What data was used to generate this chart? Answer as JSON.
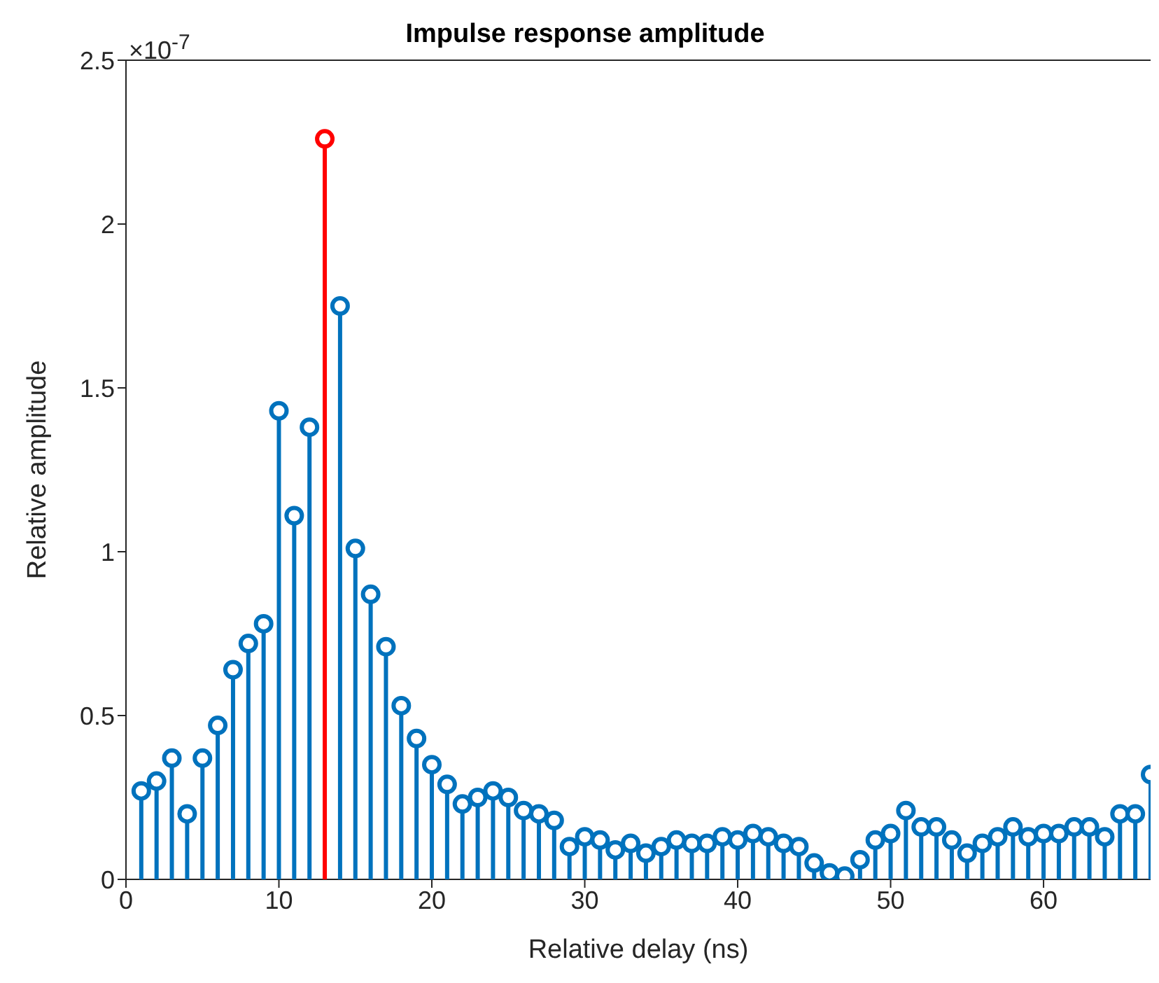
{
  "chart_data": {
    "type": "lollipop",
    "title": "Impulse response amplitude",
    "xlabel": "Relative delay (ns)",
    "ylabel": "Relative amplitude",
    "annotations": [
      "×10$^{-7}$"
    ],
    "xlim": [
      0,
      67
    ],
    "xticks": [
      0,
      10,
      20,
      30,
      40,
      50,
      60
    ],
    "ylim": [
      0,
      2.5
    ],
    "yticks": [
      0,
      0.5,
      1,
      1.5,
      2,
      2.5
    ],
    "marker": "circle",
    "series": [
      {
        "color": "#0072bd",
        "x": [
          1,
          2,
          3,
          4,
          5,
          6,
          7,
          8,
          9,
          10,
          11,
          12,
          14,
          15,
          16,
          17,
          18,
          19,
          20,
          21,
          22,
          23,
          24,
          25,
          26,
          27,
          28,
          29,
          30,
          31,
          32,
          33,
          34,
          35,
          36,
          37,
          38,
          39,
          40,
          41,
          42,
          43,
          44,
          45,
          46,
          47,
          48,
          49,
          50,
          51,
          52,
          53,
          54,
          55,
          56,
          57,
          58,
          59,
          60,
          61,
          62,
          63,
          64,
          65,
          66,
          67
        ],
        "values": [
          0.27,
          0.3,
          0.37,
          0.2,
          0.37,
          0.47,
          0.64,
          0.72,
          0.78,
          1.43,
          1.11,
          1.38,
          1.75,
          1.01,
          0.87,
          0.71,
          0.53,
          0.43,
          0.35,
          0.29,
          0.23,
          0.25,
          0.27,
          0.25,
          0.21,
          0.2,
          0.18,
          0.1,
          0.13,
          0.12,
          0.09,
          0.11,
          0.08,
          0.1,
          0.12,
          0.11,
          0.11,
          0.13,
          0.12,
          0.14,
          0.13,
          0.11,
          0.1,
          0.05,
          0.02,
          0.01,
          0.06,
          0.12,
          0.14,
          0.21,
          0.16,
          0.16,
          0.12,
          0.08,
          0.11,
          0.13,
          0.16,
          0.13,
          0.14,
          0.14,
          0.16,
          0.16,
          0.13,
          0.2,
          0.2,
          0.32
        ]
      },
      {
        "color": "#ff0000",
        "x": [
          13
        ],
        "values": [
          2.26
        ]
      }
    ]
  }
}
